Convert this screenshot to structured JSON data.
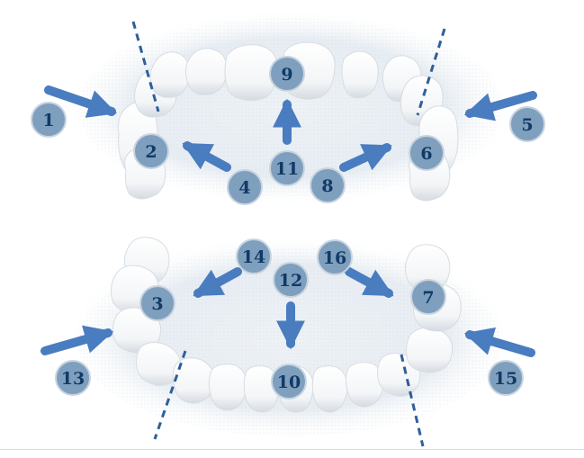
{
  "diagram": {
    "subject": "dental-arches-occlusal",
    "colors": {
      "marker_fill": "#7f9fbe",
      "marker_stroke": "#c8d4e0",
      "arrow": "#4a7cc0",
      "guide_line": "#2f5f98",
      "label_text": "#123a66",
      "tooth": "#ffffff",
      "tooth_shadow": "#cfd6de",
      "halo": "#dde6ee"
    },
    "labels": {
      "n1": "1",
      "n2": "2",
      "n3": "3",
      "n4": "4",
      "n5": "5",
      "n6": "6",
      "n7": "7",
      "n8": "8",
      "n9": "9",
      "n10": "10",
      "n11": "11",
      "n12": "12",
      "n13": "13",
      "n14": "14",
      "n15": "15",
      "n16": "16"
    }
  }
}
